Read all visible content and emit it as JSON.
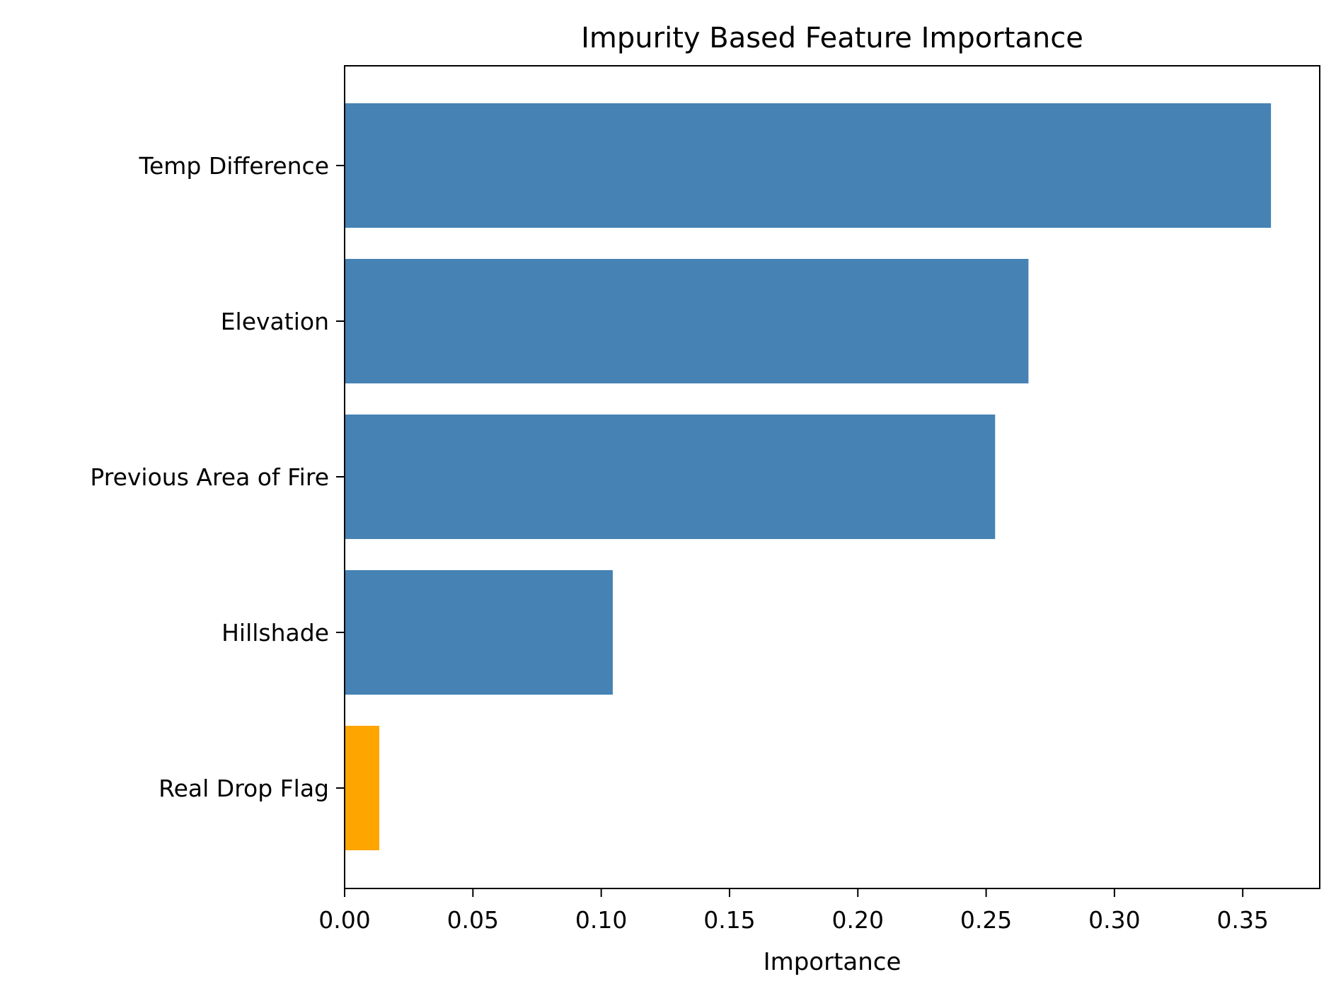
{
  "chart_data": {
    "type": "bar",
    "orientation": "horizontal",
    "title": "Impurity Based Feature Importance",
    "xlabel": "Importance",
    "ylabel": "",
    "categories": [
      "Temp Difference",
      "Elevation",
      "Previous Area of Fire",
      "Hillshade",
      "Real Drop Flag"
    ],
    "values": [
      0.361,
      0.2665,
      0.2535,
      0.1045,
      0.0135
    ],
    "bar_colors": [
      "#4682b4",
      "#4682b4",
      "#4682b4",
      "#4682b4",
      "#ffa500"
    ],
    "xlim": [
      0,
      0.38
    ],
    "xticks": [
      0.0,
      0.05,
      0.1,
      0.15,
      0.2,
      0.25,
      0.3,
      0.35
    ],
    "xtick_labels": [
      "0.00",
      "0.05",
      "0.10",
      "0.15",
      "0.20",
      "0.25",
      "0.30",
      "0.35"
    ],
    "grid": false,
    "legend": "none"
  }
}
